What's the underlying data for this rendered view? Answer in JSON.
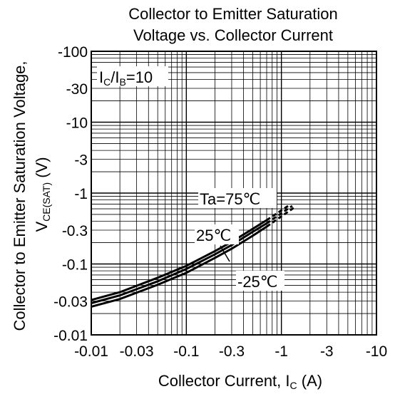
{
  "chart_data": {
    "type": "line",
    "title_line1": "Collector to Emitter Saturation",
    "title_line2": "Voltage vs.  Collector Current",
    "xlabel": {
      "text": "Collector Current, ",
      "sym": "I",
      "sub": "C",
      "unit": " (A)"
    },
    "ylabel": {
      "line1": "Collector to Emitter Saturation Voltage,",
      "sym": "V",
      "sub": "CE(SAT)",
      "unit": " (V)"
    },
    "x_scale": "log",
    "y_scale": "log",
    "xlim": [
      -0.01,
      -10
    ],
    "ylim": [
      -0.01,
      -100
    ],
    "grid": true,
    "x_ticks": [
      {
        "value": -0.01,
        "label": "-0.01"
      },
      {
        "value": -0.03,
        "label": "-0.03"
      },
      {
        "value": -0.1,
        "label": "-0.1"
      },
      {
        "value": -0.3,
        "label": "-0.3"
      },
      {
        "value": -1,
        "label": "-1"
      },
      {
        "value": -3,
        "label": "-3"
      },
      {
        "value": -10,
        "label": "-10"
      }
    ],
    "y_ticks": [
      {
        "value": -0.01,
        "label": "-0.01"
      },
      {
        "value": -0.03,
        "label": "-0.03"
      },
      {
        "value": -0.1,
        "label": "-0.1"
      },
      {
        "value": -0.3,
        "label": "-0.3"
      },
      {
        "value": -1,
        "label": "-1"
      },
      {
        "value": -3,
        "label": "-3"
      },
      {
        "value": -10,
        "label": "-10"
      },
      {
        "value": -30,
        "label": "-30"
      },
      {
        "value": -100,
        "label": "-100"
      }
    ],
    "condition": {
      "sym1": "I",
      "sub1": "C",
      "sep": "/",
      "sym2": "I",
      "sub2": "B",
      "tail": "=10"
    },
    "series": [
      {
        "name": "Ta=75℃",
        "x": [
          -0.01,
          -0.02,
          -0.05,
          -0.1,
          -0.2,
          -0.3,
          -0.5,
          -0.7,
          -1.0,
          -1.2
        ],
        "y": [
          -0.031,
          -0.04,
          -0.064,
          -0.094,
          -0.152,
          -0.205,
          -0.313,
          -0.415,
          -0.57,
          -0.67
        ],
        "solid_until": -0.7
      },
      {
        "name": "25℃",
        "x": [
          -0.01,
          -0.02,
          -0.05,
          -0.1,
          -0.2,
          -0.3,
          -0.5,
          -0.7,
          -1.0,
          -1.3
        ],
        "y": [
          -0.028,
          -0.036,
          -0.057,
          -0.085,
          -0.137,
          -0.185,
          -0.284,
          -0.374,
          -0.52,
          -0.66
        ],
        "solid_until": -0.7
      },
      {
        "name": "-25℃",
        "x": [
          -0.01,
          -0.02,
          -0.05,
          -0.1,
          -0.2,
          -0.3,
          -0.5,
          -0.7,
          -1.0,
          -1.4
        ],
        "y": [
          -0.025,
          -0.032,
          -0.051,
          -0.075,
          -0.122,
          -0.164,
          -0.25,
          -0.336,
          -0.47,
          -0.64
        ],
        "solid_until": -0.7
      }
    ]
  }
}
